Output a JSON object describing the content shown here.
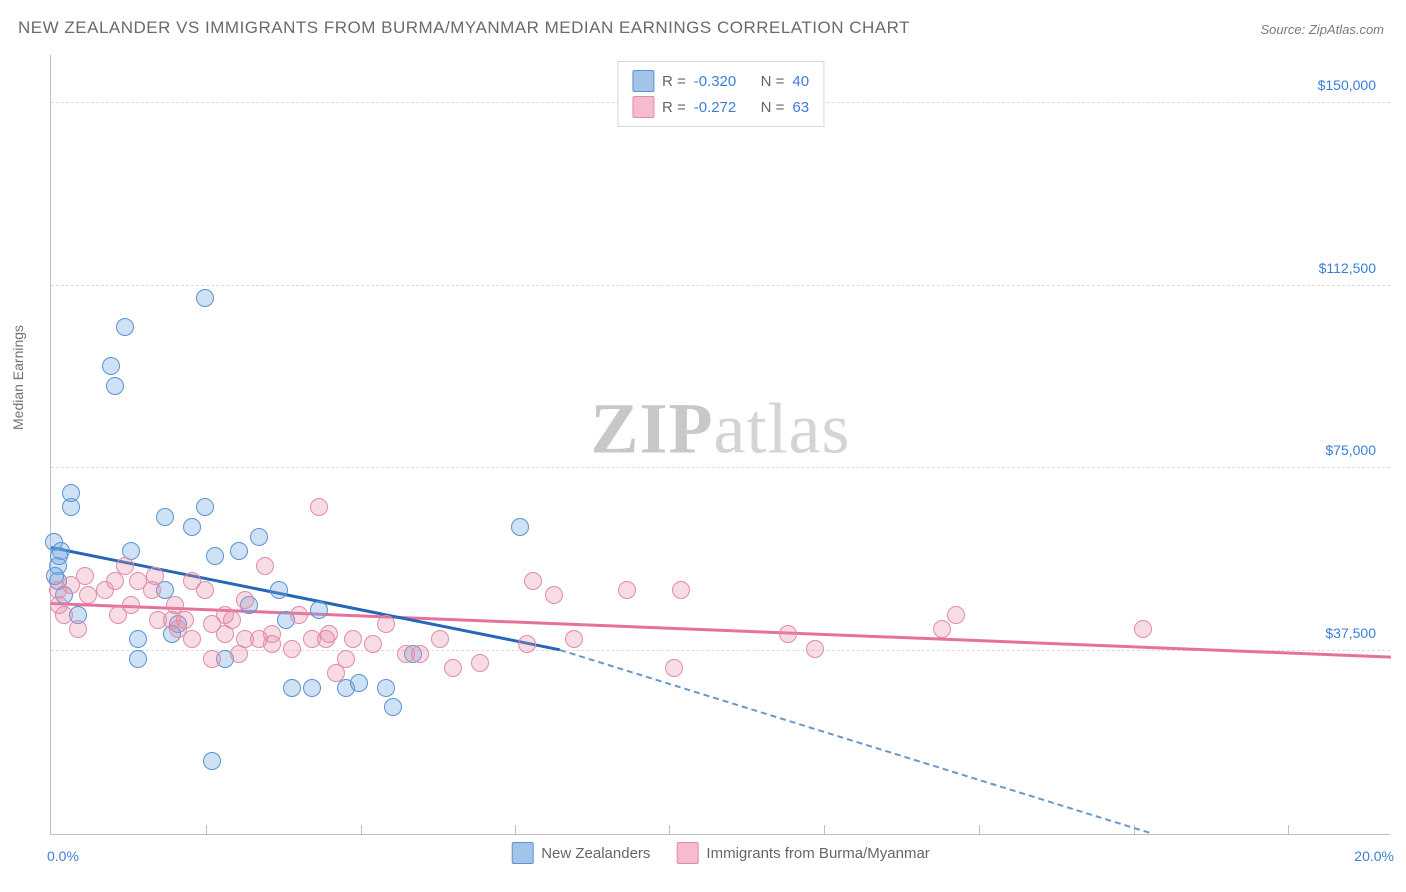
{
  "title": "NEW ZEALANDER VS IMMIGRANTS FROM BURMA/MYANMAR MEDIAN EARNINGS CORRELATION CHART",
  "source": "Source: ZipAtlas.com",
  "watermark": {
    "bold": "ZIP",
    "light": "atlas"
  },
  "chart": {
    "type": "scatter",
    "xlim": [
      0,
      20
    ],
    "ylim": [
      0,
      160000
    ],
    "x_unit": "%",
    "x_axis_label": "",
    "y_axis_label": "Median Earnings",
    "xlim_labels": [
      "0.0%",
      "20.0%"
    ],
    "x_tick_positions": [
      2.31,
      4.62,
      6.92,
      9.23,
      11.54,
      13.85,
      16.16,
      18.46
    ],
    "y_ticks": [
      {
        "v": 37500,
        "label": "$37,500",
        "gridline": true
      },
      {
        "v": 75000,
        "label": "$75,000",
        "gridline": true
      },
      {
        "v": 112500,
        "label": "$112,500",
        "gridline": true
      },
      {
        "v": 150000,
        "label": "$150,000",
        "gridline": true
      }
    ],
    "background_color": "#ffffff",
    "grid_color": "#dcdcdc",
    "marker_radius": 9,
    "series": [
      {
        "name": "New Zealanders",
        "color_fill": "rgba(117,169,224,0.35)",
        "color_stroke": "#5a93cf",
        "stats": {
          "R": "-0.320",
          "N": "40"
        },
        "trend": {
          "x1": 0,
          "y1": 58500,
          "x2": 7.6,
          "y2": 37500,
          "color": "#2866b8",
          "width": 3
        },
        "trend_extend": {
          "x1": 7.6,
          "y1": 37500,
          "x2": 16.4,
          "y2": 0,
          "color": "#6699cc",
          "width": 2,
          "dash": true
        },
        "points": [
          {
            "x": 0.05,
            "y": 60000
          },
          {
            "x": 0.1,
            "y": 55000
          },
          {
            "x": 0.15,
            "y": 58000
          },
          {
            "x": 0.1,
            "y": 52000
          },
          {
            "x": 0.2,
            "y": 49000
          },
          {
            "x": 0.3,
            "y": 67000
          },
          {
            "x": 0.06,
            "y": 53000
          },
          {
            "x": 0.12,
            "y": 57000
          },
          {
            "x": 0.9,
            "y": 96000
          },
          {
            "x": 0.95,
            "y": 92000
          },
          {
            "x": 1.1,
            "y": 104000
          },
          {
            "x": 2.3,
            "y": 110000
          },
          {
            "x": 0.4,
            "y": 45000
          },
          {
            "x": 1.9,
            "y": 43000
          },
          {
            "x": 1.7,
            "y": 50000
          },
          {
            "x": 2.1,
            "y": 63000
          },
          {
            "x": 1.2,
            "y": 58000
          },
          {
            "x": 1.7,
            "y": 65000
          },
          {
            "x": 2.3,
            "y": 67000
          },
          {
            "x": 2.45,
            "y": 57000
          },
          {
            "x": 2.8,
            "y": 58000
          },
          {
            "x": 2.4,
            "y": 15000
          },
          {
            "x": 2.95,
            "y": 47000
          },
          {
            "x": 3.1,
            "y": 61000
          },
          {
            "x": 1.3,
            "y": 36000
          },
          {
            "x": 1.8,
            "y": 41000
          },
          {
            "x": 2.6,
            "y": 36000
          },
          {
            "x": 1.3,
            "y": 40000
          },
          {
            "x": 3.4,
            "y": 50000
          },
          {
            "x": 3.5,
            "y": 44000
          },
          {
            "x": 3.6,
            "y": 30000
          },
          {
            "x": 3.9,
            "y": 30000
          },
          {
            "x": 4.0,
            "y": 46000
          },
          {
            "x": 4.4,
            "y": 30000
          },
          {
            "x": 4.6,
            "y": 31000
          },
          {
            "x": 5.0,
            "y": 30000
          },
          {
            "x": 5.1,
            "y": 26000
          },
          {
            "x": 5.4,
            "y": 37000
          },
          {
            "x": 7.0,
            "y": 63000
          },
          {
            "x": 0.3,
            "y": 70000
          }
        ]
      },
      {
        "name": "Immigrants from Burma/Myanmar",
        "color_fill": "rgba(231,140,170,0.30)",
        "color_stroke": "#e18ba7",
        "stats": {
          "R": "-0.272",
          "N": "63"
        },
        "trend": {
          "x1": 0,
          "y1": 47000,
          "x2": 20,
          "y2": 36000,
          "color": "#e6729b",
          "width": 3
        },
        "points": [
          {
            "x": 0.1,
            "y": 50000
          },
          {
            "x": 0.12,
            "y": 47000
          },
          {
            "x": 0.2,
            "y": 45000
          },
          {
            "x": 0.3,
            "y": 51000
          },
          {
            "x": 0.4,
            "y": 42000
          },
          {
            "x": 0.5,
            "y": 53000
          },
          {
            "x": 0.55,
            "y": 49000
          },
          {
            "x": 0.8,
            "y": 50000
          },
          {
            "x": 0.95,
            "y": 52000
          },
          {
            "x": 1.0,
            "y": 45000
          },
          {
            "x": 1.1,
            "y": 55000
          },
          {
            "x": 1.2,
            "y": 47000
          },
          {
            "x": 1.3,
            "y": 52000
          },
          {
            "x": 1.5,
            "y": 50000
          },
          {
            "x": 1.55,
            "y": 53000
          },
          {
            "x": 1.6,
            "y": 44000
          },
          {
            "x": 1.8,
            "y": 44000
          },
          {
            "x": 1.85,
            "y": 47000
          },
          {
            "x": 1.9,
            "y": 42000
          },
          {
            "x": 2.0,
            "y": 44000
          },
          {
            "x": 2.1,
            "y": 40000
          },
          {
            "x": 2.1,
            "y": 52000
          },
          {
            "x": 2.3,
            "y": 50000
          },
          {
            "x": 2.4,
            "y": 36000
          },
          {
            "x": 2.4,
            "y": 43000
          },
          {
            "x": 2.6,
            "y": 45000
          },
          {
            "x": 2.6,
            "y": 41000
          },
          {
            "x": 2.7,
            "y": 44000
          },
          {
            "x": 2.8,
            "y": 37000
          },
          {
            "x": 2.9,
            "y": 40000
          },
          {
            "x": 2.9,
            "y": 48000
          },
          {
            "x": 3.1,
            "y": 40000
          },
          {
            "x": 3.2,
            "y": 55000
          },
          {
            "x": 3.3,
            "y": 41000
          },
          {
            "x": 3.3,
            "y": 39000
          },
          {
            "x": 3.6,
            "y": 38000
          },
          {
            "x": 3.7,
            "y": 45000
          },
          {
            "x": 3.9,
            "y": 40000
          },
          {
            "x": 4.0,
            "y": 67000
          },
          {
            "x": 4.1,
            "y": 40000
          },
          {
            "x": 4.15,
            "y": 41000
          },
          {
            "x": 4.25,
            "y": 33000
          },
          {
            "x": 4.4,
            "y": 36000
          },
          {
            "x": 4.5,
            "y": 40000
          },
          {
            "x": 4.8,
            "y": 39000
          },
          {
            "x": 5.0,
            "y": 43000
          },
          {
            "x": 5.3,
            "y": 37000
          },
          {
            "x": 5.5,
            "y": 37000
          },
          {
            "x": 5.8,
            "y": 40000
          },
          {
            "x": 6.0,
            "y": 34000
          },
          {
            "x": 6.4,
            "y": 35000
          },
          {
            "x": 7.1,
            "y": 39000
          },
          {
            "x": 7.2,
            "y": 52000
          },
          {
            "x": 7.5,
            "y": 49000
          },
          {
            "x": 7.8,
            "y": 40000
          },
          {
            "x": 8.6,
            "y": 50000
          },
          {
            "x": 9.3,
            "y": 34000
          },
          {
            "x": 9.4,
            "y": 50000
          },
          {
            "x": 11.0,
            "y": 41000
          },
          {
            "x": 11.4,
            "y": 38000
          },
          {
            "x": 13.3,
            "y": 42000
          },
          {
            "x": 13.5,
            "y": 45000
          },
          {
            "x": 16.3,
            "y": 42000
          }
        ]
      }
    ],
    "legend_top_format": {
      "R_label": "R =",
      "N_label": "N ="
    },
    "legend_bottom": [
      {
        "swatch": "blue",
        "label": "New Zealanders"
      },
      {
        "swatch": "pink",
        "label": "Immigrants from Burma/Myanmar"
      }
    ]
  }
}
